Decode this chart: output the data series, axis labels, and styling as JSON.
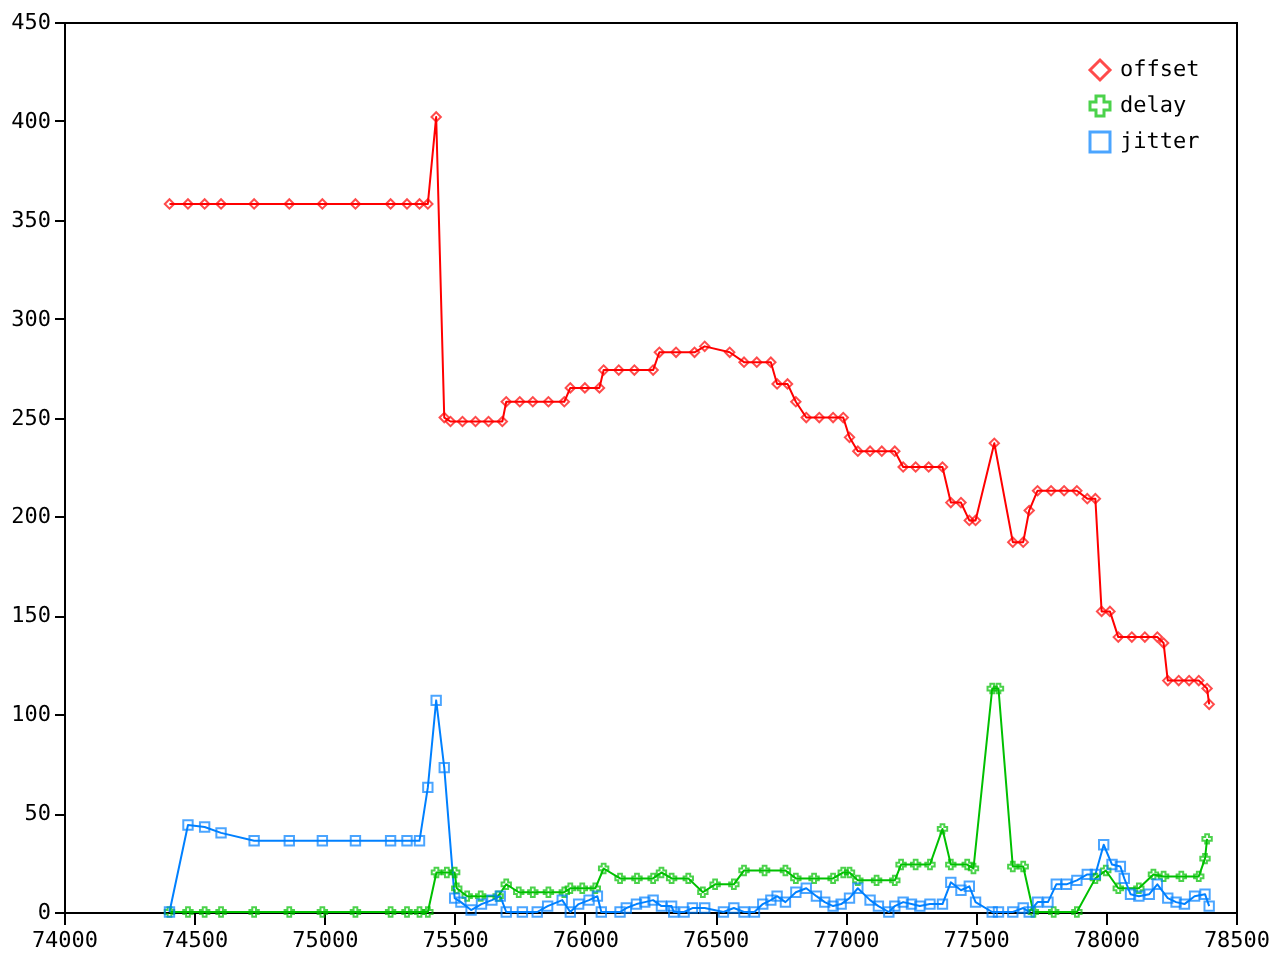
{
  "chart_data": {
    "type": "line",
    "xlim": [
      74000,
      78500
    ],
    "xticks": [
      74000,
      74500,
      75000,
      75500,
      76000,
      76500,
      77000,
      77500,
      78000,
      78500
    ],
    "ylim": [
      0,
      450
    ],
    "yticks": [
      0,
      50,
      100,
      150,
      200,
      250,
      300,
      350,
      400,
      450
    ],
    "grid": false,
    "legend": "top right",
    "series": [
      {
        "name": "offset",
        "color": "#ff0000",
        "marker": "diamond",
        "x": [
          74405,
          74476,
          74540,
          74603,
          74730,
          74865,
          74992,
          75119,
          75254,
          75317,
          75365,
          75397,
          75429,
          75460,
          75484,
          75530,
          75580,
          75630,
          75683,
          75698,
          75750,
          75800,
          75860,
          75921,
          75944,
          76000,
          76056,
          76072,
          76130,
          76190,
          76262,
          76286,
          76350,
          76421,
          76460,
          76556,
          76611,
          76660,
          76714,
          76738,
          76778,
          76810,
          76850,
          76900,
          76953,
          76992,
          77016,
          77048,
          77095,
          77140,
          77190,
          77222,
          77270,
          77320,
          77373,
          77405,
          77444,
          77476,
          77500,
          77572,
          77643,
          77683,
          77706,
          77738,
          77790,
          77840,
          77889,
          77929,
          77960,
          77984,
          78016,
          78048,
          78100,
          78150,
          78198,
          78222,
          78238,
          78280,
          78320,
          78357,
          78389,
          78397
        ],
        "values": [
          358,
          358,
          358,
          358,
          358,
          358,
          358,
          358,
          358,
          358,
          358,
          358,
          402,
          250,
          248,
          248,
          248,
          248,
          248,
          258,
          258,
          258,
          258,
          258,
          265,
          265,
          265,
          274,
          274,
          274,
          274,
          283,
          283,
          283,
          286,
          283,
          278,
          278,
          278,
          267,
          267,
          258,
          250,
          250,
          250,
          250,
          240,
          233,
          233,
          233,
          233,
          225,
          225,
          225,
          225,
          207,
          207,
          198,
          198,
          237,
          187,
          187,
          203,
          213,
          213,
          213,
          213,
          209,
          209,
          152,
          152,
          139,
          139,
          139,
          139,
          136,
          117,
          117,
          117,
          117,
          113,
          105
        ]
      },
      {
        "name": "delay",
        "color": "#00c000",
        "marker": "cross",
        "x": [
          74405,
          74476,
          74540,
          74603,
          74730,
          74865,
          74992,
          75119,
          75254,
          75317,
          75365,
          75397,
          75430,
          75470,
          75500,
          75508,
          75548,
          75600,
          75667,
          75698,
          75746,
          75800,
          75860,
          75921,
          75944,
          75990,
          76040,
          76072,
          76135,
          76200,
          76262,
          76294,
          76333,
          76397,
          76453,
          76500,
          76572,
          76611,
          76690,
          76770,
          76810,
          76880,
          76953,
          76992,
          77016,
          77048,
          77120,
          77190,
          77214,
          77270,
          77325,
          77373,
          77405,
          77468,
          77492,
          77564,
          77588,
          77643,
          77683,
          77722,
          77800,
          77889,
          77960,
          78000,
          78048,
          78127,
          78183,
          78222,
          78290,
          78357,
          78381,
          78389
        ],
        "values": [
          0,
          0,
          0,
          0,
          0,
          0,
          0,
          0,
          0,
          0,
          0,
          0,
          20,
          20,
          20,
          12,
          8,
          8,
          8,
          14,
          10,
          10,
          10,
          10,
          12,
          12,
          12,
          22,
          17,
          17,
          17,
          20,
          17,
          17,
          10,
          14,
          14,
          21,
          21,
          21,
          17,
          17,
          17,
          20,
          20,
          16,
          16,
          16,
          24,
          24,
          24,
          42,
          24,
          24,
          22,
          113,
          113,
          23,
          23,
          0,
          0,
          0,
          17,
          21,
          12,
          12,
          19,
          18,
          18,
          18,
          27,
          37
        ]
      },
      {
        "name": "jitter",
        "color": "#0080ff",
        "marker": "square",
        "x": [
          74405,
          74476,
          74540,
          74603,
          74730,
          74865,
          74992,
          75119,
          75254,
          75317,
          75365,
          75397,
          75429,
          75460,
          75500,
          75524,
          75563,
          75603,
          75643,
          75675,
          75698,
          75760,
          75817,
          75857,
          75913,
          75944,
          75976,
          76016,
          76048,
          76063,
          76135,
          76159,
          76198,
          76230,
          76262,
          76294,
          76333,
          76341,
          76381,
          76413,
          76460,
          76532,
          76572,
          76611,
          76651,
          76683,
          76714,
          76738,
          76770,
          76810,
          76850,
          76889,
          76921,
          76953,
          76984,
          77016,
          77048,
          77095,
          77127,
          77167,
          77190,
          77222,
          77254,
          77286,
          77325,
          77373,
          77405,
          77444,
          77476,
          77500,
          77564,
          77588,
          77643,
          77683,
          77706,
          77738,
          77778,
          77810,
          77849,
          77889,
          77929,
          77960,
          77992,
          78024,
          78056,
          78071,
          78095,
          78127,
          78167,
          78198,
          78238,
          78270,
          78302,
          78341,
          78381,
          78397
        ],
        "values": [
          0,
          44,
          43,
          40,
          36,
          36,
          36,
          36,
          36,
          36,
          36,
          63,
          107,
          73,
          7,
          5,
          1,
          4,
          6,
          8,
          0,
          0,
          0,
          3,
          6,
          0,
          4,
          6,
          8,
          0,
          0,
          2,
          4,
          5,
          6,
          3,
          3,
          0,
          0,
          2,
          2,
          0,
          2,
          0,
          0,
          4,
          6,
          8,
          5,
          10,
          12,
          8,
          5,
          3,
          4,
          7,
          12,
          6,
          3,
          0,
          3,
          5,
          4,
          3,
          4,
          4,
          15,
          11,
          13,
          5,
          0,
          0,
          0,
          2,
          0,
          5,
          5,
          14,
          14,
          16,
          19,
          19,
          34,
          24,
          23,
          17,
          9,
          8,
          9,
          14,
          7,
          5,
          4,
          8,
          9,
          3
        ]
      }
    ]
  }
}
